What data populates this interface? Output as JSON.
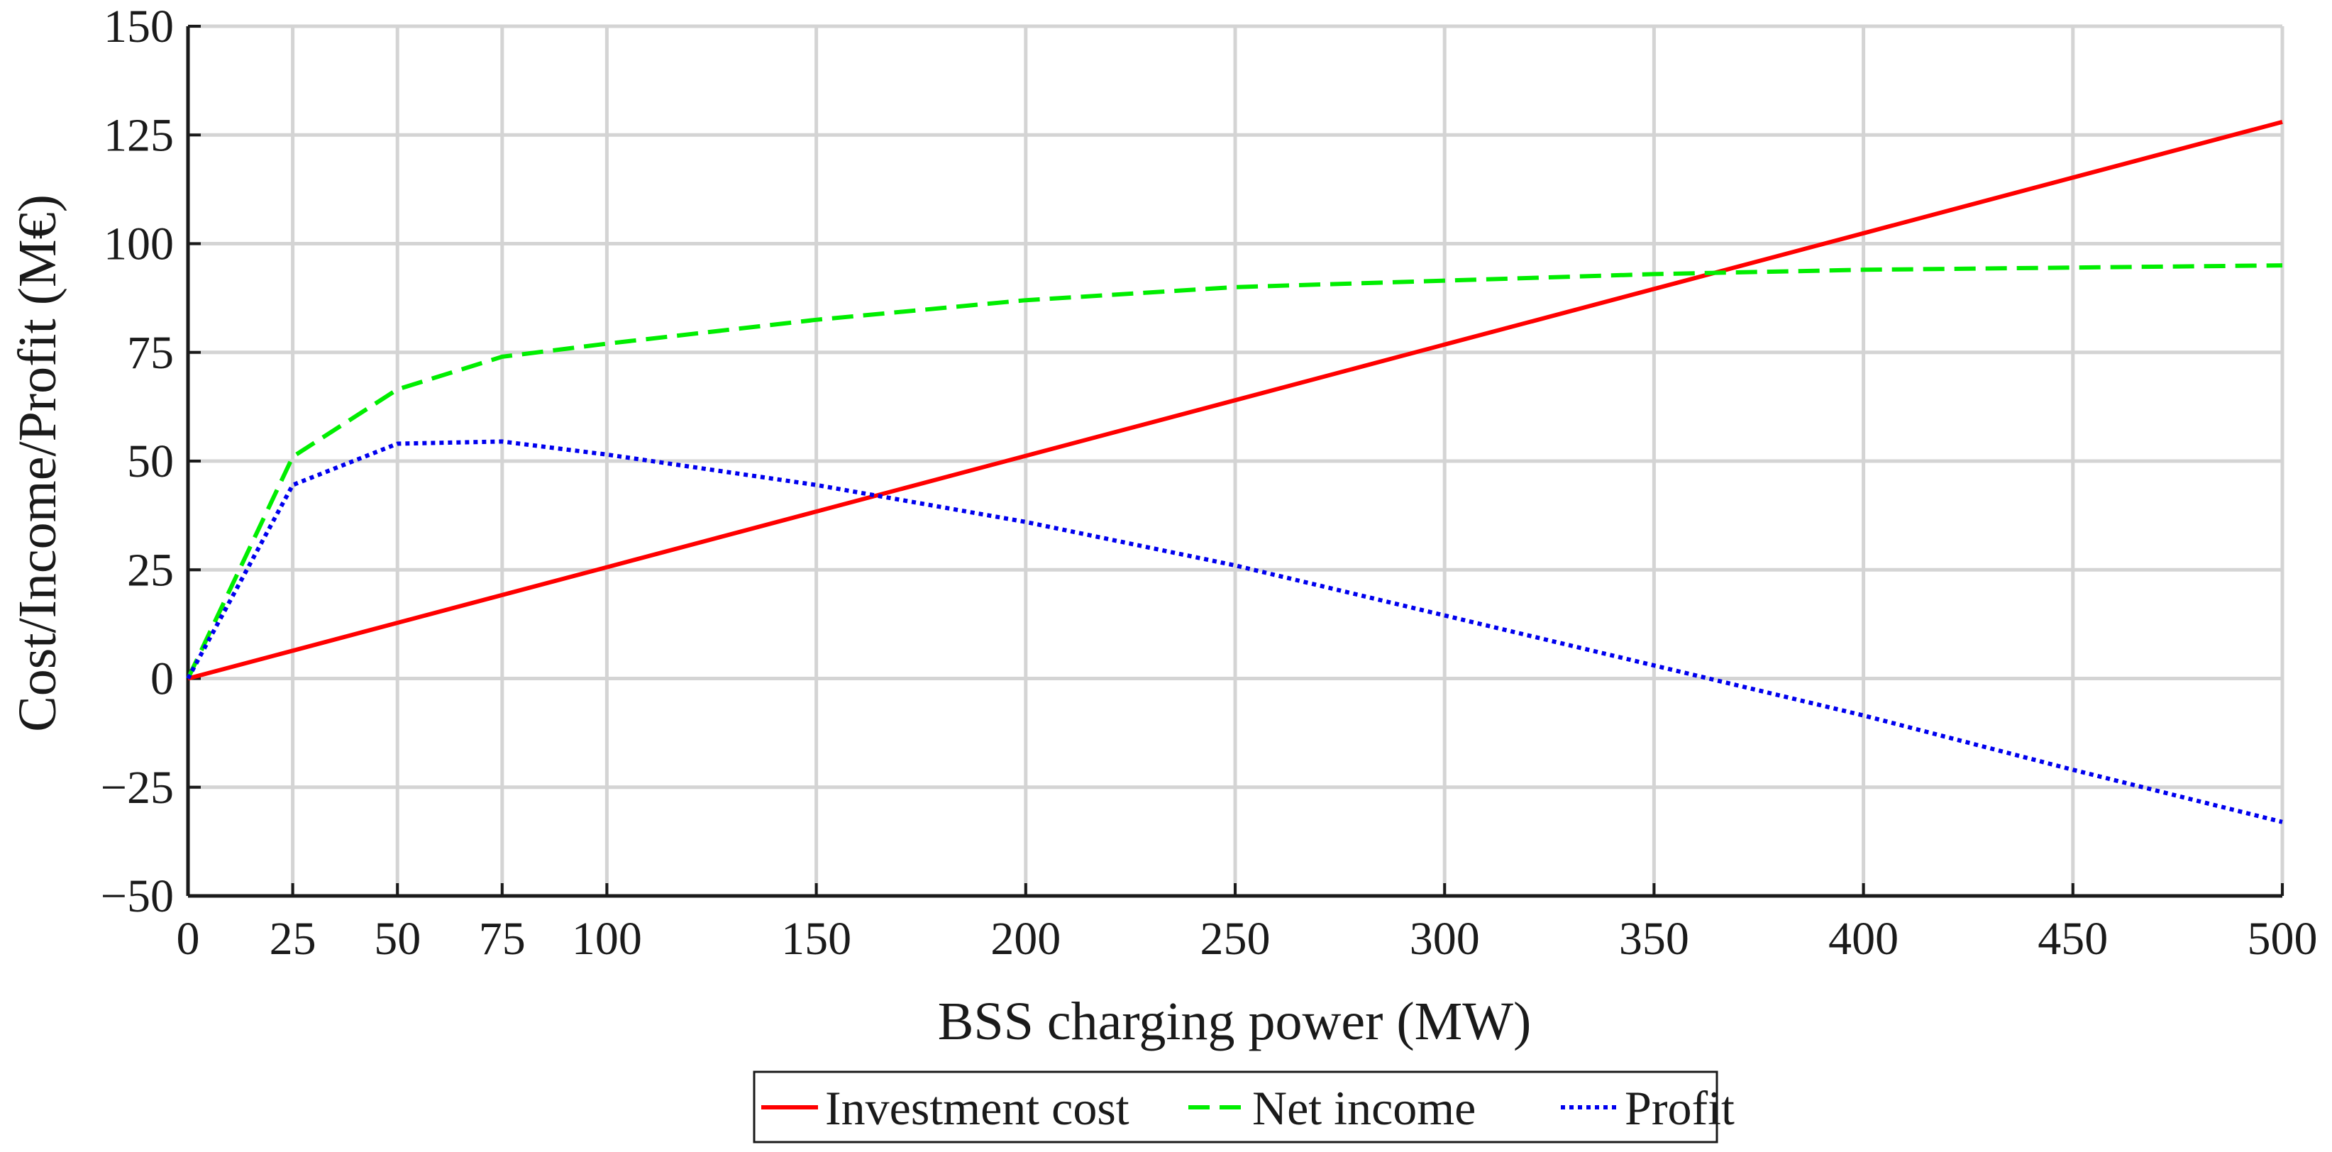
{
  "chart_data": {
    "type": "line",
    "title": "",
    "xlabel": "BSS charging power (MW)",
    "ylabel": "Cost/Income/Profit (M€)",
    "xlim": [
      0,
      500
    ],
    "ylim": [
      -50,
      150
    ],
    "grid": true,
    "x_ticks": [
      0,
      25,
      50,
      75,
      100,
      150,
      200,
      250,
      300,
      350,
      400,
      450,
      500
    ],
    "x_tick_labels": [
      "0",
      "25",
      "50",
      "75",
      "100",
      "150",
      "200",
      "250",
      "300",
      "350",
      "400",
      "450",
      "500"
    ],
    "y_ticks": [
      -50,
      -25,
      0,
      25,
      50,
      75,
      100,
      125,
      150
    ],
    "y_tick_labels": [
      "−50",
      "−25",
      "0",
      "25",
      "50",
      "75",
      "100",
      "125",
      "150"
    ],
    "legend_position": "bottom-center",
    "series": [
      {
        "name": "Investment cost",
        "color": "#ff0000",
        "style": "solid",
        "x": [
          0,
          25,
          50,
          75,
          100,
          150,
          200,
          250,
          300,
          350,
          400,
          450,
          500
        ],
        "values": [
          0,
          6.4,
          12.8,
          19.2,
          25.6,
          38.4,
          51.2,
          64,
          76.8,
          89.6,
          102.4,
          115.2,
          128
        ]
      },
      {
        "name": "Net income",
        "color": "#00ee00",
        "style": "dashed",
        "x": [
          0,
          25,
          50,
          75,
          100,
          150,
          200,
          250,
          300,
          350,
          400,
          450,
          500
        ],
        "values": [
          0,
          51,
          66.5,
          74,
          77,
          82.5,
          87,
          90,
          91.5,
          93,
          94,
          94.5,
          95
        ]
      },
      {
        "name": "Profit",
        "color": "#0000ee",
        "style": "dotted",
        "x": [
          0,
          25,
          50,
          75,
          100,
          150,
          200,
          250,
          300,
          350,
          400,
          450,
          500
        ],
        "values": [
          0,
          44.5,
          54,
          54.5,
          51.5,
          44.5,
          36,
          26,
          14.5,
          3,
          -8.5,
          -21,
          -33
        ]
      }
    ]
  }
}
